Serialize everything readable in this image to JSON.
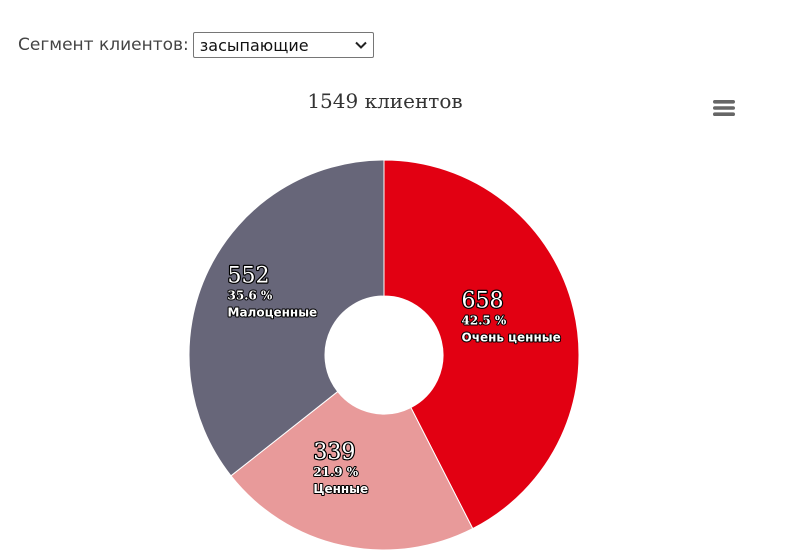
{
  "filter": {
    "label": "Сегмент клиентов:",
    "selected": "засыпающие"
  },
  "icons": {
    "dropdown": "chevron-down-icon",
    "menu": "hamburger-menu-icon"
  },
  "chart_data": {
    "type": "pie",
    "donut": true,
    "title": "1549 клиентов",
    "legend": "none",
    "slices": [
      {
        "name": "Очень ценные",
        "value": 658,
        "percent": "42.5 %",
        "color": "#e20012"
      },
      {
        "name": "Ценные",
        "value": 339,
        "percent": "21.9 %",
        "color": "#e89a9a"
      },
      {
        "name": "Малоценные",
        "value": 552,
        "percent": "35.6 %",
        "color": "#676679"
      }
    ]
  }
}
